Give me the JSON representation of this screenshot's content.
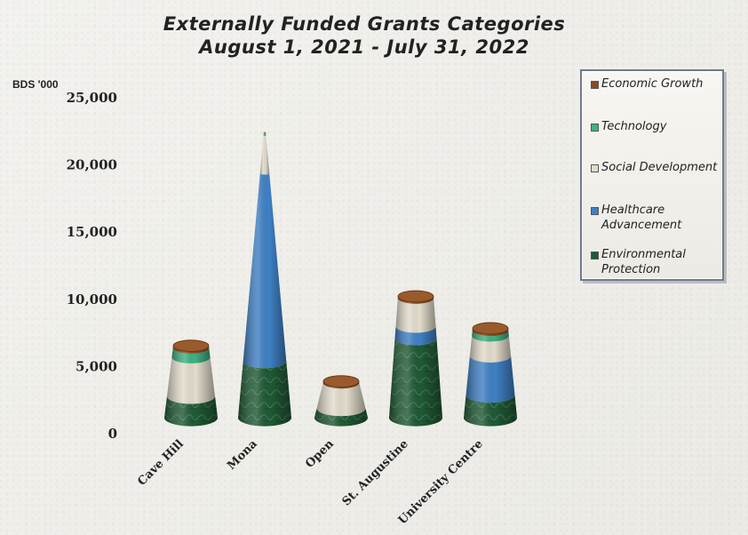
{
  "title_line1": "Externally Funded Grants Categories",
  "title_line2": "August 1, 2021 - July 31, 2022",
  "unit": "BDS '000",
  "chart_data": {
    "type": "bar",
    "stacked": true,
    "categories": [
      "Cave Hill",
      "Mona",
      "Open",
      "St. Augustine",
      "University Centre"
    ],
    "series": [
      {
        "name": "Environmental Protection",
        "color": "#1f5a34",
        "values": [
          1600,
          4200,
          700,
          5900,
          1700
        ]
      },
      {
        "name": "Healthcare Advancement",
        "color": "#3f80c4",
        "values": [
          0,
          14000,
          0,
          900,
          2900
        ]
      },
      {
        "name": "Social Development",
        "color": "#e2dccb",
        "values": [
          2900,
          2800,
          1900,
          2100,
          1500
        ]
      },
      {
        "name": "Technology",
        "color": "#3fb083",
        "values": [
          700,
          200,
          0,
          0,
          400
        ]
      },
      {
        "name": "Economic Growth",
        "color": "#8a4b22",
        "values": [
          150,
          60,
          100,
          130,
          150
        ]
      }
    ],
    "yticks": [
      "0",
      "5,000",
      "10,000",
      "15,000",
      "20,000",
      "25,000"
    ],
    "ylim": [
      0,
      25000
    ],
    "legend_position": "top-right",
    "grid": false
  }
}
